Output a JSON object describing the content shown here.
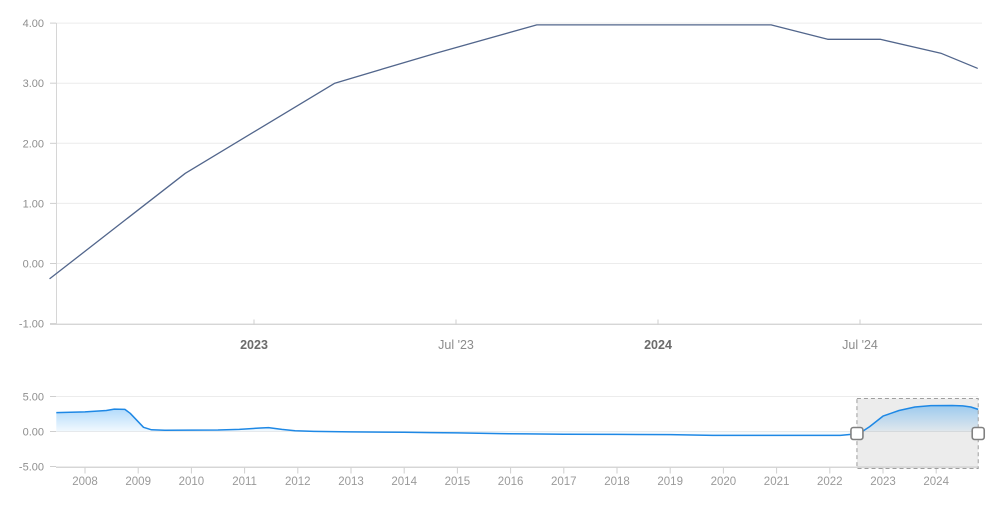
{
  "colors": {
    "main_line": "#52668c",
    "nav_line": "#1e88e5",
    "nav_fill_top": "rgba(33,150,243,0.50)",
    "nav_fill_bottom": "rgba(33,150,243,0.04)",
    "grid": "#ececec",
    "axis": "#d6d6d6",
    "tick": "#cfcfcf",
    "y_label": "#8e8e8e",
    "x_label_bold": "#6b6b6b",
    "x_label_regular": "#8c8c8c",
    "nav_label": "#9a9a9a",
    "selection_fill": "rgba(110,110,110,0.13)",
    "selection_border": "#9e9e9e",
    "handle_fill": "#ffffff",
    "handle_border": "#808080",
    "background": "#ffffff"
  },
  "chart_data": [
    {
      "id": "main",
      "type": "line",
      "title": "",
      "xlabel": "",
      "ylabel": "",
      "grid": "horizontal",
      "legend": "none",
      "ylim": [
        -1,
        4.1
      ],
      "xlim": [
        2022.49,
        2024.8
      ],
      "y_ticks": [
        {
          "v": 4,
          "label": "4.00"
        },
        {
          "v": 3,
          "label": "3.00"
        },
        {
          "v": 2,
          "label": "2.00"
        },
        {
          "v": 1,
          "label": "1.00"
        },
        {
          "v": 0,
          "label": "0.00"
        },
        {
          "v": -1,
          "label": "-1.00"
        }
      ],
      "x_ticks": [
        {
          "t": 2023.0,
          "label": "2023",
          "bold": true
        },
        {
          "t": 2023.5,
          "label": "Jul '23",
          "bold": false
        },
        {
          "t": 2024.0,
          "label": "2024",
          "bold": true
        },
        {
          "t": 2024.5,
          "label": "Jul '24",
          "bold": false
        }
      ],
      "series": [
        {
          "points": [
            [
              2022.495,
              -0.25
            ],
            [
              2022.83,
              1.5
            ],
            [
              2023.2,
              3.0
            ],
            [
              2023.45,
              3.5
            ],
            [
              2023.7,
              3.97
            ],
            [
              2024.28,
              3.97
            ],
            [
              2024.42,
              3.73
            ],
            [
              2024.55,
              3.73
            ],
            [
              2024.7,
              3.5
            ],
            [
              2024.79,
              3.25
            ]
          ]
        }
      ]
    },
    {
      "id": "navigator",
      "type": "area",
      "title": "",
      "xlabel": "",
      "ylabel": "",
      "grid": "horizontal",
      "legend": "none",
      "ylim": [
        -5,
        5
      ],
      "xlim": [
        2007.46,
        2024.8
      ],
      "y_ticks": [
        {
          "v": 5,
          "label": "5.00"
        },
        {
          "v": 0,
          "label": "0.00"
        },
        {
          "v": -5,
          "label": "-5.00"
        }
      ],
      "x_ticks": [
        {
          "t": 2008,
          "label": "2008"
        },
        {
          "t": 2009,
          "label": "2009"
        },
        {
          "t": 2010,
          "label": "2010"
        },
        {
          "t": 2011,
          "label": "2011"
        },
        {
          "t": 2012,
          "label": "2012"
        },
        {
          "t": 2013,
          "label": "2013"
        },
        {
          "t": 2014,
          "label": "2014"
        },
        {
          "t": 2015,
          "label": "2015"
        },
        {
          "t": 2016,
          "label": "2016"
        },
        {
          "t": 2017,
          "label": "2017"
        },
        {
          "t": 2018,
          "label": "2018"
        },
        {
          "t": 2019,
          "label": "2019"
        },
        {
          "t": 2020,
          "label": "2020"
        },
        {
          "t": 2021,
          "label": "2021"
        },
        {
          "t": 2022,
          "label": "2022"
        },
        {
          "t": 2023,
          "label": "2023"
        },
        {
          "t": 2024,
          "label": "2024"
        }
      ],
      "selection": {
        "start": 2022.51,
        "end": 2024.79
      },
      "series": [
        {
          "points": [
            [
              2007.46,
              2.7
            ],
            [
              2008.0,
              2.8
            ],
            [
              2008.4,
              3.0
            ],
            [
              2008.55,
              3.2
            ],
            [
              2008.75,
              3.15
            ],
            [
              2008.85,
              2.6
            ],
            [
              2009.1,
              0.6
            ],
            [
              2009.25,
              0.25
            ],
            [
              2009.5,
              0.18
            ],
            [
              2010.0,
              0.2
            ],
            [
              2010.5,
              0.22
            ],
            [
              2010.9,
              0.3
            ],
            [
              2011.3,
              0.5
            ],
            [
              2011.45,
              0.55
            ],
            [
              2011.7,
              0.3
            ],
            [
              2011.95,
              0.1
            ],
            [
              2012.3,
              0.02
            ],
            [
              2013.0,
              -0.05
            ],
            [
              2014.0,
              -0.12
            ],
            [
              2014.5,
              -0.15
            ],
            [
              2015.0,
              -0.2
            ],
            [
              2015.8,
              -0.3
            ],
            [
              2016.3,
              -0.35
            ],
            [
              2017.0,
              -0.4
            ],
            [
              2018.0,
              -0.42
            ],
            [
              2019.0,
              -0.45
            ],
            [
              2019.8,
              -0.55
            ],
            [
              2021.0,
              -0.55
            ],
            [
              2022.2,
              -0.55
            ],
            [
              2022.55,
              -0.3
            ],
            [
              2022.75,
              0.7
            ],
            [
              2023.0,
              2.2
            ],
            [
              2023.3,
              3.0
            ],
            [
              2023.6,
              3.5
            ],
            [
              2023.9,
              3.7
            ],
            [
              2024.3,
              3.72
            ],
            [
              2024.5,
              3.65
            ],
            [
              2024.65,
              3.5
            ],
            [
              2024.79,
              3.15
            ]
          ]
        }
      ]
    }
  ]
}
